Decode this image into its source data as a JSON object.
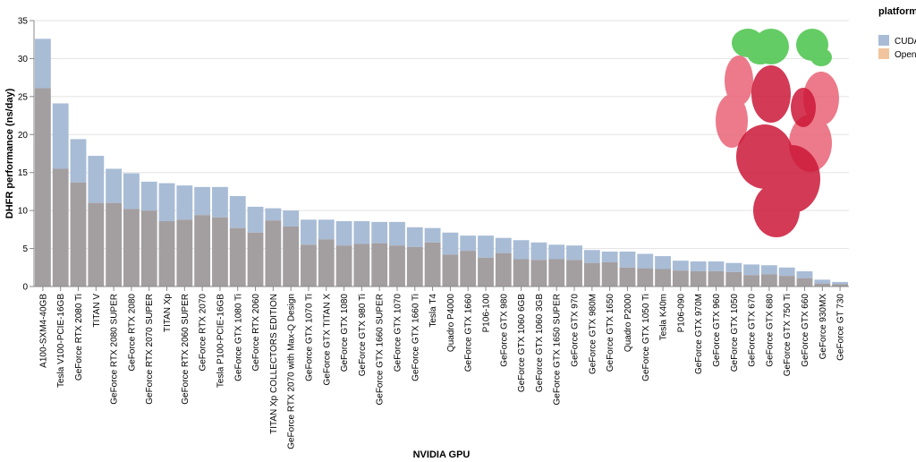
{
  "chart_data": {
    "type": "bar",
    "xlabel": "NVIDIA GPU",
    "ylabel": "DHFR performance (ns/day)",
    "ylim": [
      0,
      35
    ],
    "yticks": [
      0,
      5,
      10,
      15,
      20,
      25,
      30,
      35
    ],
    "grid": true,
    "overlay": true,
    "legend": {
      "title": "platform",
      "placement": "top-right"
    },
    "colors": {
      "CUDA": "#a8bcd6",
      "OpenCL": "#f2c49e",
      "overlap": "#a39ea0"
    },
    "categories": [
      "A100-SXM4-40GB",
      "Tesla V100-PCIE-16GB",
      "GeForce RTX 2080 Ti",
      "TITAN V",
      "GeForce RTX 2080 SUPER",
      "GeForce RTX 2080",
      "GeForce RTX 2070 SUPER",
      "TITAN Xp",
      "GeForce RTX 2060 SUPER",
      "GeForce RTX 2070",
      "Tesla P100-PCIE-16GB",
      "GeForce GTX 1080 Ti",
      "GeForce RTX 2060",
      "TITAN Xp COLLECTORS EDITION",
      "GeForce RTX 2070 with Max-Q Design",
      "GeForce GTX 1070 Ti",
      "GeForce GTX TITAN X",
      "GeForce GTX 1080",
      "GeForce GTX 980 Ti",
      "GeForce GTX 1660 SUPER",
      "GeForce GTX 1070",
      "GeForce GTX 1660 Ti",
      "Tesla T4",
      "Quadro P4000",
      "GeForce GTX 1660",
      "P106-100",
      "GeForce GTX 980",
      "GeForce GTX 1060 6GB",
      "GeForce GTX 1060 3GB",
      "GeForce GTX 1650 SUPER",
      "GeForce GTX 970",
      "GeForce GTX 980M",
      "GeForce GTX 1650",
      "Quadro P2000",
      "GeForce GTX 1050 Ti",
      "Tesla K40m",
      "P106-090",
      "GeForce GTX 970M",
      "GeForce GTX 960",
      "GeForce GTX 1050",
      "GeForce GTX 670",
      "GeForce GTX 680",
      "GeForce GTX 750 Ti",
      "GeForce GTX 660",
      "GeForce 930MX",
      "GeForce GT 730"
    ],
    "series": [
      {
        "name": "CUDA",
        "values": [
          32.6,
          24.1,
          19.4,
          17.2,
          15.5,
          14.9,
          13.8,
          13.6,
          13.3,
          13.1,
          13.1,
          11.9,
          10.5,
          10.3,
          10.0,
          8.8,
          8.8,
          8.6,
          8.6,
          8.5,
          8.5,
          7.8,
          7.7,
          7.1,
          6.7,
          6.7,
          6.4,
          6.1,
          5.8,
          5.5,
          5.4,
          4.8,
          4.6,
          4.6,
          4.3,
          4.0,
          3.4,
          3.3,
          3.3,
          3.1,
          2.9,
          2.8,
          2.5,
          2.0,
          0.9,
          0.6
        ]
      },
      {
        "name": "OpenCL",
        "values": [
          26.1,
          15.5,
          13.7,
          11.0,
          11.0,
          10.2,
          10.0,
          8.6,
          8.8,
          9.4,
          9.1,
          7.7,
          7.1,
          8.7,
          7.9,
          5.5,
          6.2,
          5.4,
          5.6,
          5.7,
          5.4,
          5.2,
          5.8,
          4.2,
          4.7,
          3.8,
          4.4,
          3.6,
          3.5,
          3.6,
          3.5,
          3.1,
          3.2,
          2.5,
          2.4,
          2.3,
          2.1,
          2.0,
          2.0,
          1.9,
          1.5,
          1.6,
          1.4,
          1.1,
          0.4,
          0.3
        ]
      }
    ]
  }
}
